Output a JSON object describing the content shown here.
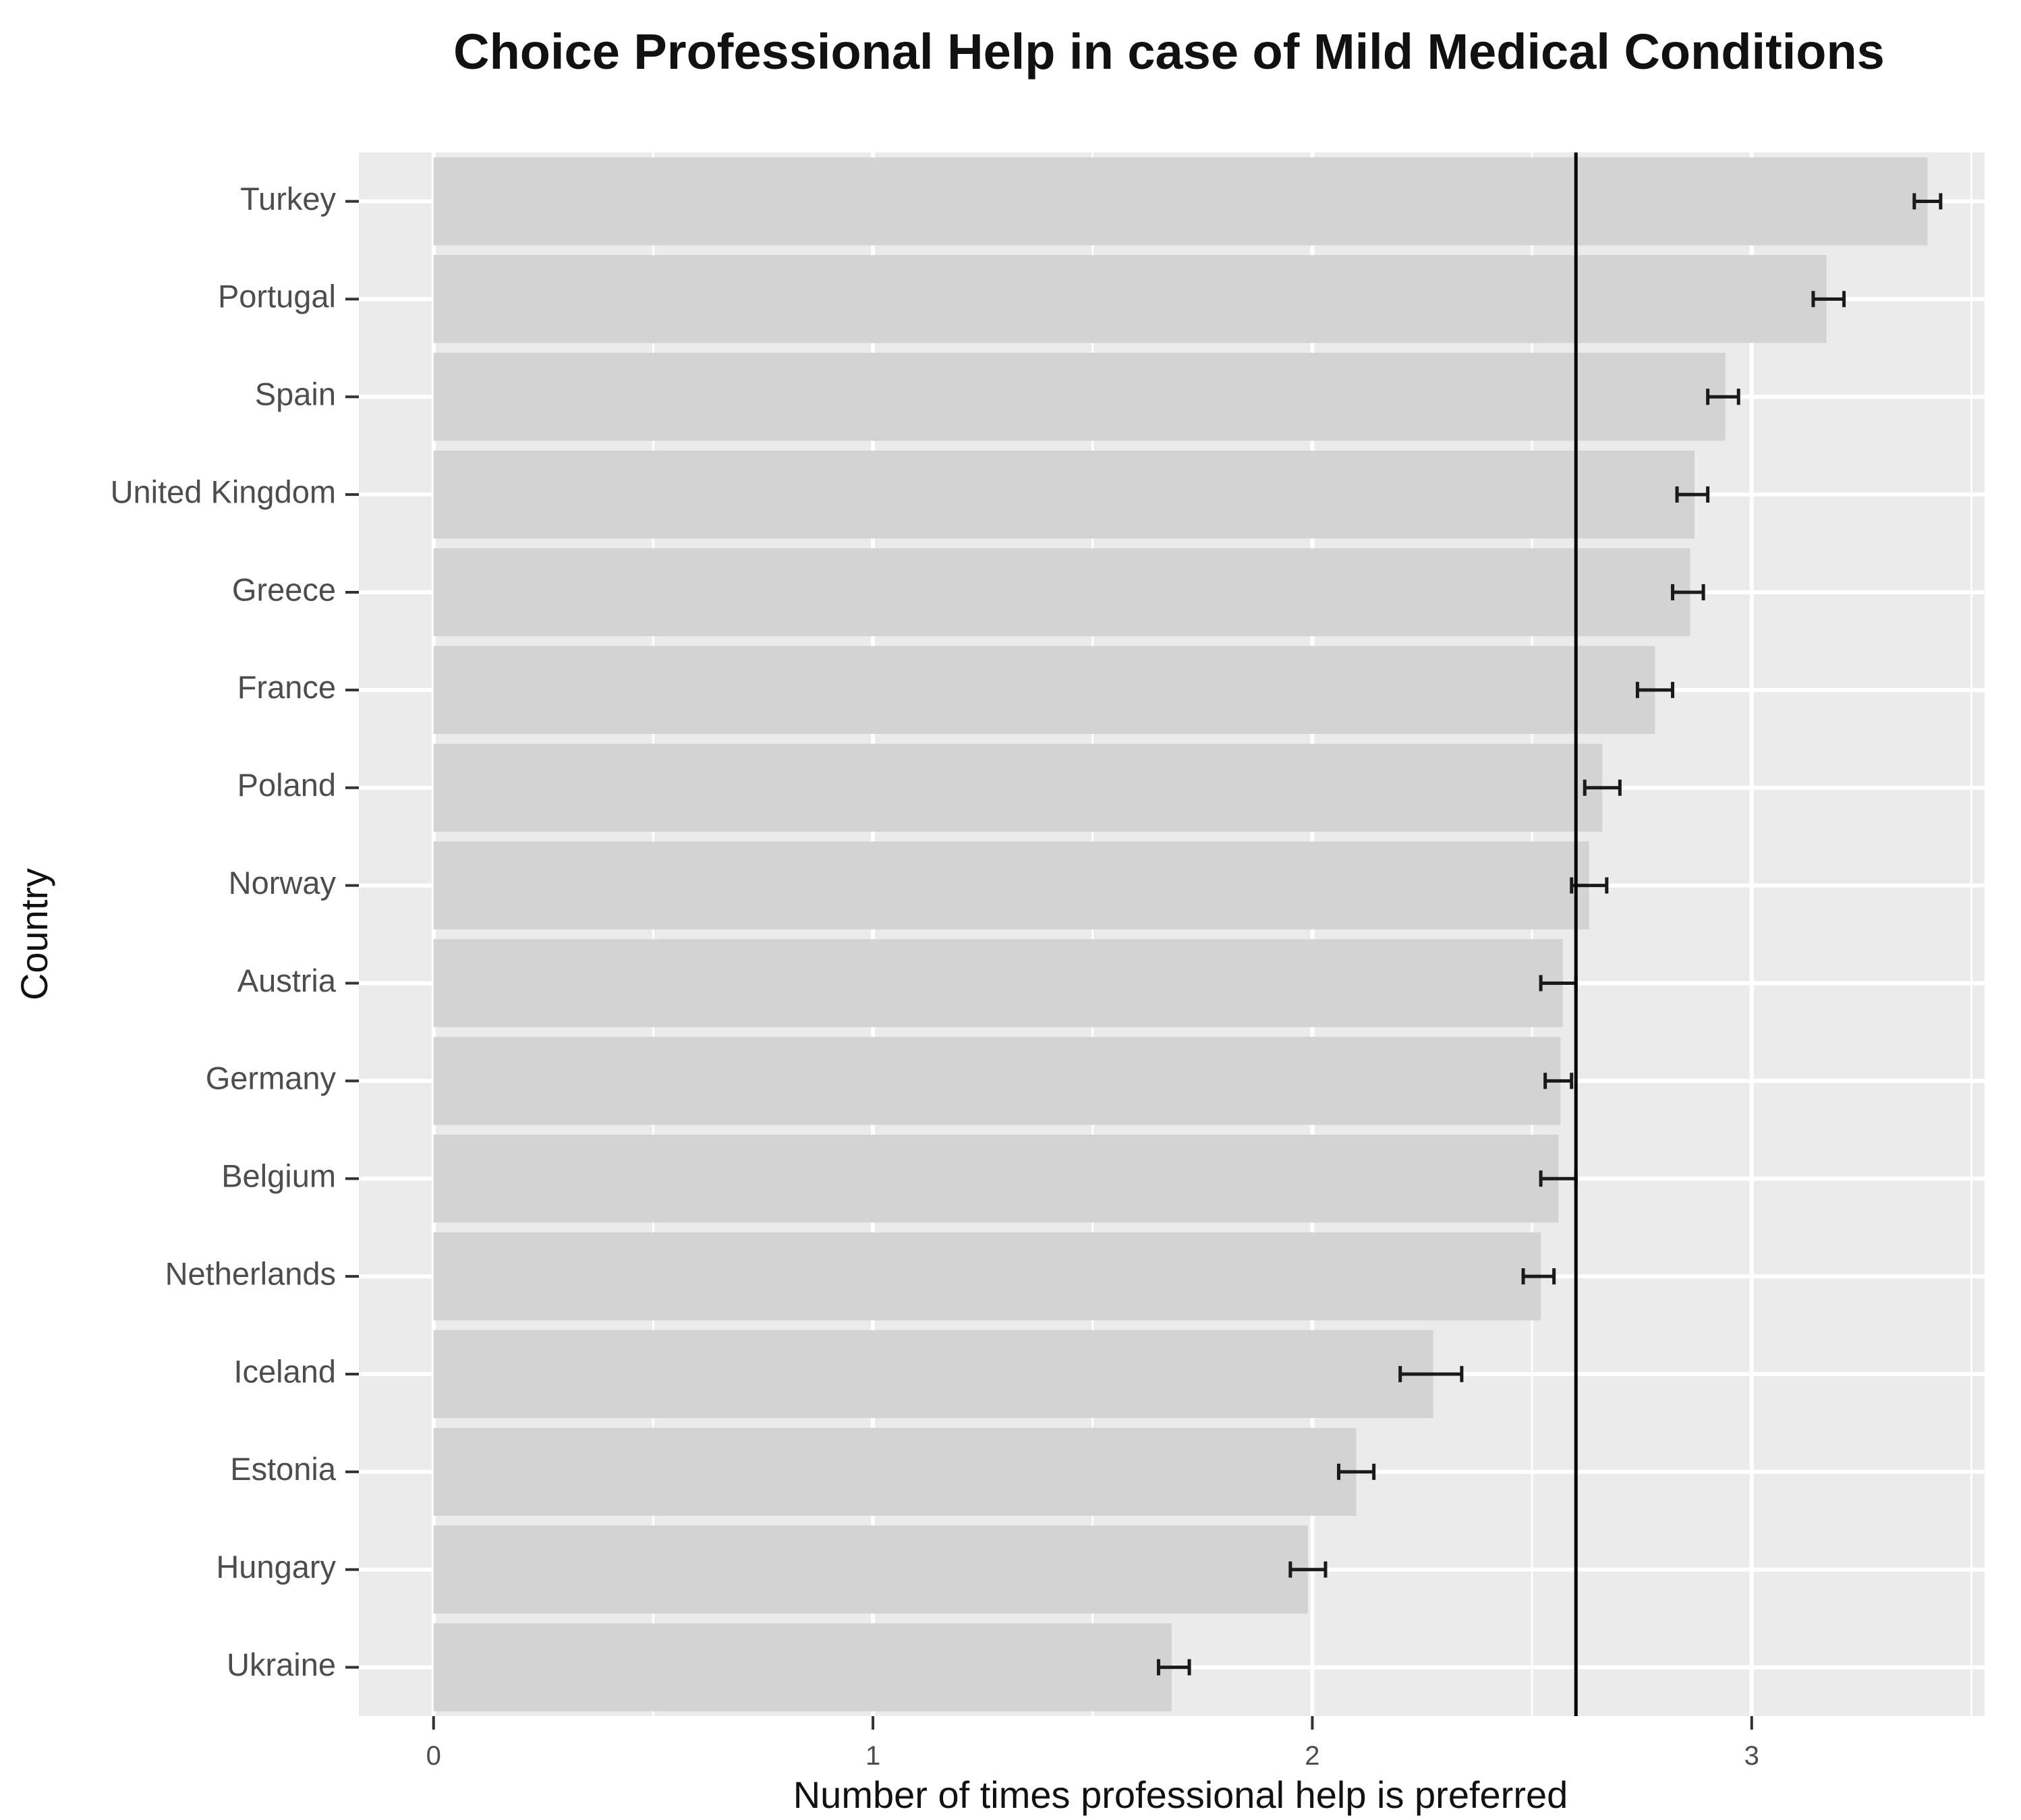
{
  "chart_data": {
    "type": "bar",
    "orientation": "horizontal",
    "title": "Choice Professional Help in case of Mild Medical Conditions",
    "xlabel": "Number of times professional help is preferred",
    "ylabel": "Country",
    "xlim": [
      -0.17,
      3.53
    ],
    "x_ticks": [
      0,
      1,
      2,
      3
    ],
    "x_tick_labels": [
      "0",
      "1",
      "2",
      "3"
    ],
    "grid": true,
    "reference_line": 2.6,
    "categories": [
      "Turkey",
      "Portugal",
      "Spain",
      "United Kingdom",
      "Greece",
      "France",
      "Poland",
      "Norway",
      "Austria",
      "Germany",
      "Belgium",
      "Netherlands",
      "Iceland",
      "Estonia",
      "Hungary",
      "Ukraine"
    ],
    "values": [
      3.4,
      3.17,
      2.94,
      2.87,
      2.86,
      2.78,
      2.66,
      2.63,
      2.57,
      2.565,
      2.56,
      2.52,
      2.275,
      2.1,
      1.99,
      1.68
    ],
    "error_low": [
      3.37,
      3.14,
      2.9,
      2.83,
      2.82,
      2.74,
      2.62,
      2.59,
      2.52,
      2.53,
      2.52,
      2.48,
      2.2,
      2.06,
      1.95,
      1.65
    ],
    "error_high": [
      3.43,
      3.21,
      2.97,
      2.9,
      2.89,
      2.82,
      2.7,
      2.67,
      2.6,
      2.59,
      2.6,
      2.55,
      2.34,
      2.14,
      2.03,
      1.72
    ],
    "colors": {
      "panel": "#ebebeb",
      "grid": "#ffffff",
      "bar": "#d3d3d3",
      "errorbar": "#1a1a1a",
      "reference_line": "#000000"
    }
  }
}
